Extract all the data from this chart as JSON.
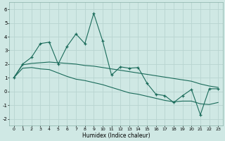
{
  "title": "",
  "xlabel": "Humidex (Indice chaleur)",
  "ylabel": "",
  "bg_color": "#cfe8e4",
  "grid_color": "#b8d4d0",
  "line_color": "#1a6b5a",
  "x_data": [
    0,
    1,
    2,
    3,
    4,
    5,
    6,
    7,
    8,
    9,
    10,
    11,
    12,
    13,
    14,
    15,
    16,
    17,
    18,
    19,
    20,
    21,
    22,
    23
  ],
  "y_main": [
    1.0,
    2.0,
    2.5,
    3.5,
    3.6,
    2.0,
    3.3,
    4.2,
    3.5,
    5.7,
    3.7,
    1.2,
    1.8,
    1.7,
    1.75,
    0.6,
    -0.2,
    -0.3,
    -0.8,
    -0.3,
    0.15,
    -1.7,
    0.2,
    0.2
  ],
  "y_upper": [
    1.0,
    1.95,
    2.05,
    2.1,
    2.15,
    2.1,
    2.05,
    2.0,
    1.9,
    1.85,
    1.75,
    1.65,
    1.55,
    1.45,
    1.35,
    1.25,
    1.15,
    1.05,
    0.95,
    0.85,
    0.75,
    0.55,
    0.4,
    0.3
  ],
  "y_lower": [
    1.0,
    1.7,
    1.75,
    1.65,
    1.6,
    1.35,
    1.1,
    0.9,
    0.8,
    0.65,
    0.5,
    0.3,
    0.1,
    -0.1,
    -0.2,
    -0.35,
    -0.5,
    -0.65,
    -0.75,
    -0.7,
    -0.7,
    -0.9,
    -0.95,
    -0.8
  ],
  "xlim": [
    -0.5,
    23.5
  ],
  "ylim": [
    -2.5,
    6.5
  ],
  "yticks": [
    -2,
    -1,
    0,
    1,
    2,
    3,
    4,
    5,
    6
  ],
  "xticks": [
    0,
    1,
    2,
    3,
    4,
    5,
    6,
    7,
    8,
    9,
    10,
    11,
    12,
    13,
    14,
    15,
    16,
    17,
    18,
    19,
    20,
    21,
    22,
    23
  ]
}
